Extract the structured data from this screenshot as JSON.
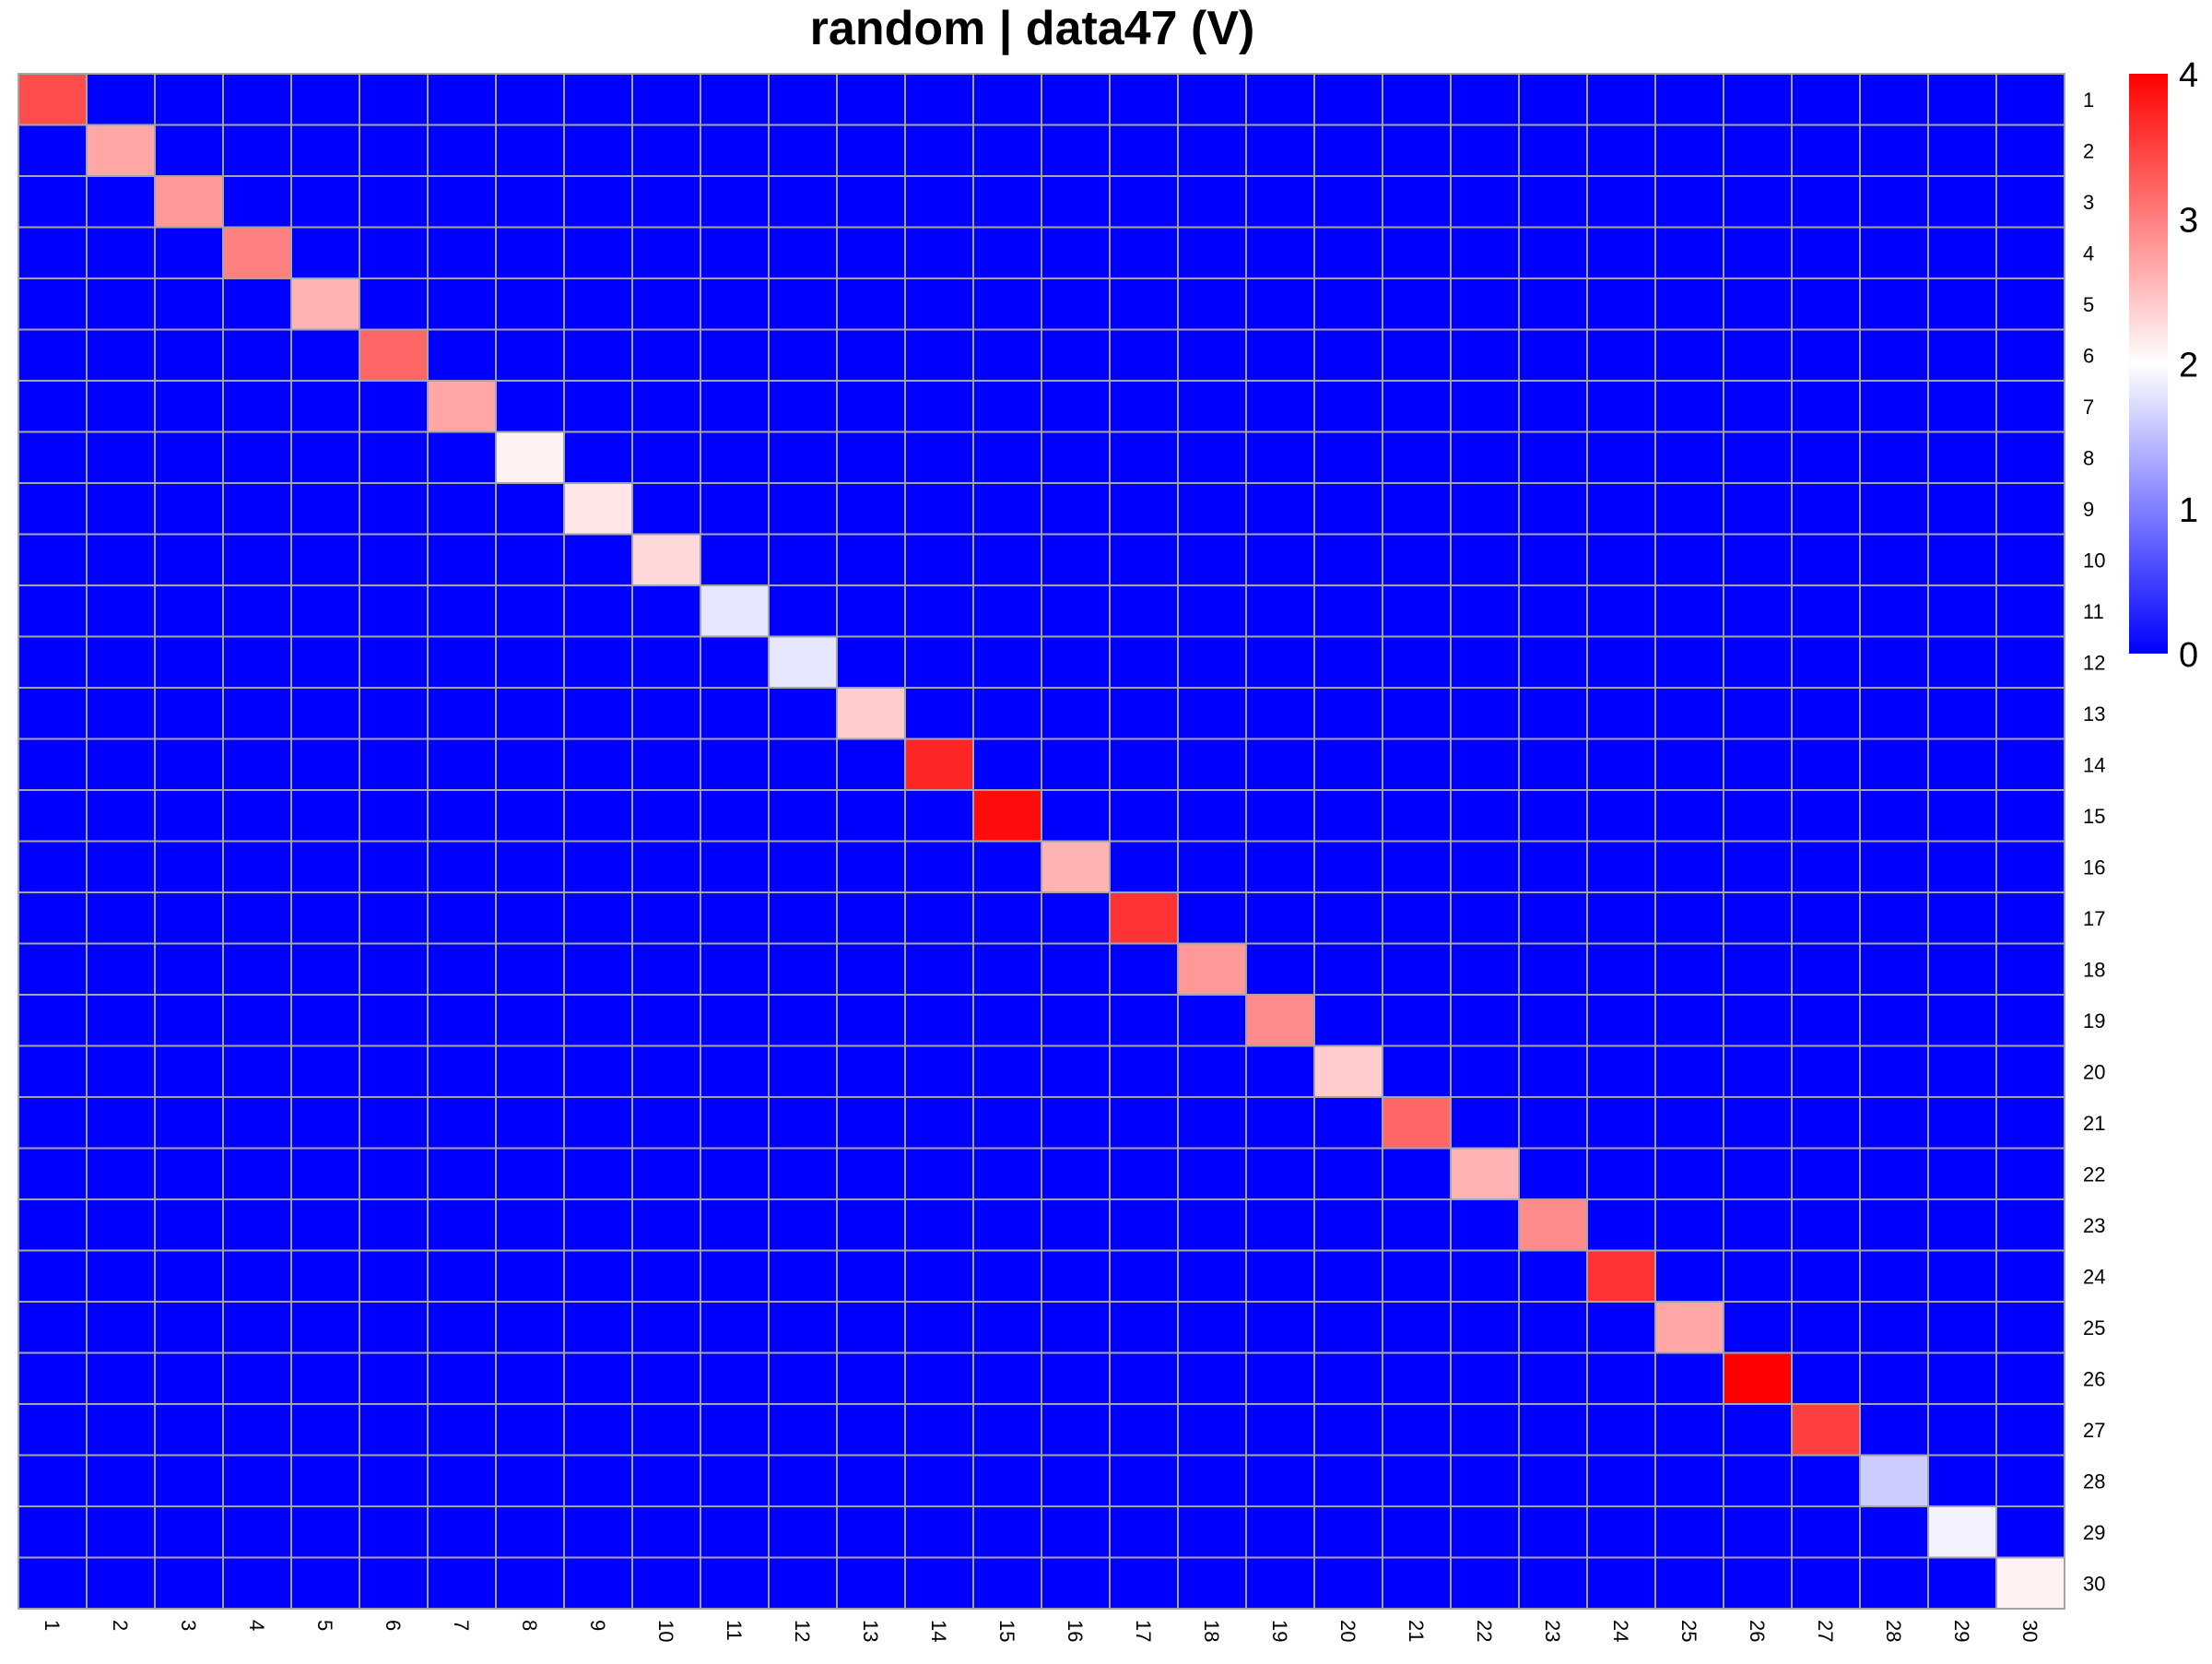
{
  "chart_data": {
    "type": "heatmap",
    "title": "random | data47 (V)",
    "rows": [
      "1",
      "2",
      "3",
      "4",
      "5",
      "6",
      "7",
      "8",
      "9",
      "10",
      "11",
      "12",
      "13",
      "14",
      "15",
      "16",
      "17",
      "18",
      "19",
      "20",
      "21",
      "22",
      "23",
      "24",
      "25",
      "26",
      "27",
      "28",
      "29",
      "30"
    ],
    "cols": [
      "1",
      "2",
      "3",
      "4",
      "5",
      "6",
      "7",
      "8",
      "9",
      "10",
      "11",
      "12",
      "13",
      "14",
      "15",
      "16",
      "17",
      "18",
      "19",
      "20",
      "21",
      "22",
      "23",
      "24",
      "25",
      "26",
      "27",
      "28",
      "29",
      "30"
    ],
    "diagonal_values": [
      3.4,
      2.7,
      2.8,
      3.0,
      2.6,
      3.2,
      2.7,
      2.1,
      2.2,
      2.3,
      1.8,
      1.8,
      2.4,
      3.7,
      3.9,
      2.6,
      3.6,
      2.8,
      2.9,
      2.4,
      3.2,
      2.6,
      2.9,
      3.6,
      2.7,
      4.0,
      3.5,
      1.6,
      1.9,
      2.1
    ],
    "off_diagonal_value": 0,
    "colorbar": {
      "min": 0,
      "max": 4,
      "ticks": [
        0,
        1,
        2,
        3,
        4
      ],
      "low_color": "#0000ff",
      "mid_color": "#ffffff",
      "high_color": "#ff0000",
      "midpoint": 2
    },
    "grid_color": "#a6a6a6",
    "grid": true
  }
}
